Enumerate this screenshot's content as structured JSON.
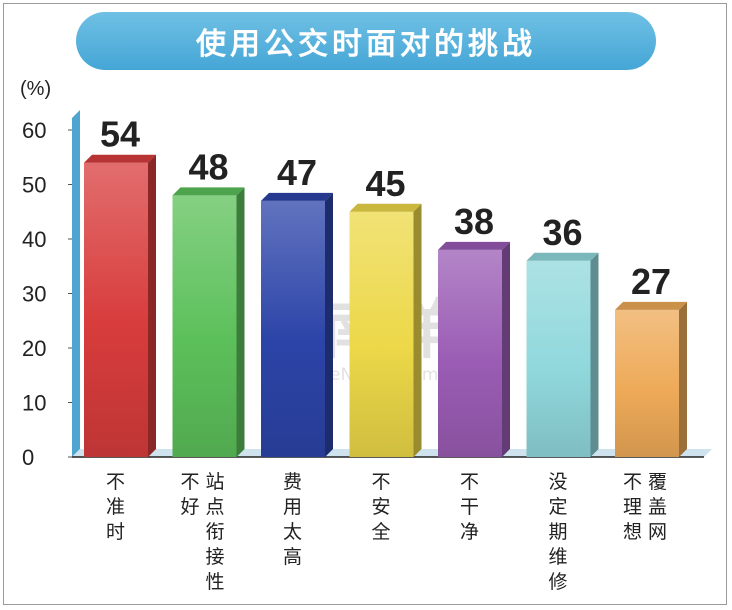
{
  "title": "使用公交时面对的挑战",
  "unit_label": "(%)",
  "watermark": {
    "logo": "e南洋",
    "url": "eNanyang.my"
  },
  "chart_data": {
    "type": "bar",
    "title": "使用公交时面对的挑战",
    "ylabel": "(%)",
    "xlabel": "",
    "ylim": [
      0,
      60
    ],
    "yticks": [
      0,
      10,
      20,
      30,
      40,
      50,
      60
    ],
    "categories": [
      {
        "label": "不准时",
        "columns": [
          "不准时"
        ]
      },
      {
        "label": "站点衔接性不好",
        "columns": [
          "站点衔接性",
          "不好"
        ]
      },
      {
        "label": "费用太高",
        "columns": [
          "费用太高"
        ]
      },
      {
        "label": "不安全",
        "columns": [
          "不安全"
        ]
      },
      {
        "label": "不干净",
        "columns": [
          "不干净"
        ]
      },
      {
        "label": "没定期维修",
        "columns": [
          "没定期维修"
        ]
      },
      {
        "label": "覆盖网不理想",
        "columns": [
          "覆盖网",
          "不理想"
        ]
      }
    ],
    "values": [
      54,
      48,
      47,
      45,
      38,
      36,
      27
    ],
    "colors": [
      "#d83c3c",
      "#5cc05a",
      "#2c44a8",
      "#ecd848",
      "#9a5cb4",
      "#90d8dc",
      "#eeaa58"
    ],
    "grid": false,
    "legend": "none"
  }
}
